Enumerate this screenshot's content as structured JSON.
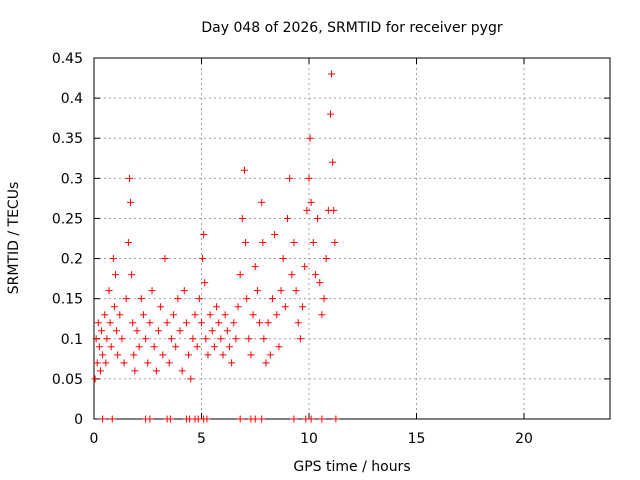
{
  "chart_data": {
    "type": "scatter",
    "title": "Day 048 of 2026, SRMTID for receiver pygr",
    "xlabel": "GPS time / hours",
    "ylabel": "SRMTID / TECUs",
    "xlim": [
      0,
      24
    ],
    "ylim": [
      0,
      0.45
    ],
    "xticks": [
      0,
      5,
      10,
      15,
      20
    ],
    "xtick_labels": [
      "0",
      "5",
      "10",
      "15",
      "20"
    ],
    "yticks": [
      0,
      0.05,
      0.1,
      0.15,
      0.2,
      0.25,
      0.3,
      0.35,
      0.4,
      0.45
    ],
    "ytick_labels": [
      "0",
      "0.05",
      "0.1",
      "0.15",
      "0.2",
      "0.25",
      "0.3",
      "0.35",
      "0.4",
      "0.45"
    ],
    "grid": true,
    "marker": "plus",
    "series": [
      {
        "name": "SRMTID",
        "color": "#ff0000",
        "points": [
          [
            0.05,
            0.05
          ],
          [
            0.1,
            0.1
          ],
          [
            0.15,
            0.07
          ],
          [
            0.2,
            0.12
          ],
          [
            0.25,
            0.09
          ],
          [
            0.3,
            0.06
          ],
          [
            0.35,
            0.11
          ],
          [
            0.4,
            0.08
          ],
          [
            0.5,
            0.13
          ],
          [
            0.55,
            0.07
          ],
          [
            0.6,
            0.1
          ],
          [
            0.7,
            0.16
          ],
          [
            0.75,
            0.12
          ],
          [
            0.8,
            0.09
          ],
          [
            0.9,
            0.2
          ],
          [
            0.95,
            0.14
          ],
          [
            1.0,
            0.18
          ],
          [
            1.05,
            0.11
          ],
          [
            1.1,
            0.08
          ],
          [
            1.2,
            0.13
          ],
          [
            1.3,
            0.1
          ],
          [
            1.4,
            0.07
          ],
          [
            1.5,
            0.15
          ],
          [
            1.6,
            0.22
          ],
          [
            1.65,
            0.3
          ],
          [
            1.7,
            0.27
          ],
          [
            1.75,
            0.18
          ],
          [
            1.8,
            0.12
          ],
          [
            1.85,
            0.08
          ],
          [
            1.9,
            0.06
          ],
          [
            2.0,
            0.11
          ],
          [
            2.1,
            0.09
          ],
          [
            2.2,
            0.15
          ],
          [
            2.3,
            0.13
          ],
          [
            2.4,
            0.1
          ],
          [
            2.5,
            0.07
          ],
          [
            2.6,
            0.12
          ],
          [
            2.7,
            0.16
          ],
          [
            2.8,
            0.09
          ],
          [
            2.9,
            0.06
          ],
          [
            3.0,
            0.11
          ],
          [
            3.1,
            0.14
          ],
          [
            3.2,
            0.08
          ],
          [
            3.3,
            0.2
          ],
          [
            3.4,
            0.12
          ],
          [
            3.5,
            0.07
          ],
          [
            3.6,
            0.1
          ],
          [
            3.7,
            0.13
          ],
          [
            3.8,
            0.09
          ],
          [
            3.9,
            0.15
          ],
          [
            4.0,
            0.11
          ],
          [
            4.1,
            0.06
          ],
          [
            4.2,
            0.16
          ],
          [
            4.3,
            0.12
          ],
          [
            4.4,
            0.08
          ],
          [
            4.5,
            0.05
          ],
          [
            4.6,
            0.1
          ],
          [
            4.7,
            0.13
          ],
          [
            4.8,
            0.09
          ],
          [
            4.9,
            0.15
          ],
          [
            5.0,
            0.12
          ],
          [
            5.05,
            0.2
          ],
          [
            5.1,
            0.23
          ],
          [
            5.15,
            0.17
          ],
          [
            5.2,
            0.1
          ],
          [
            5.3,
            0.08
          ],
          [
            5.4,
            0.13
          ],
          [
            5.5,
            0.11
          ],
          [
            5.6,
            0.09
          ],
          [
            5.7,
            0.14
          ],
          [
            5.8,
            0.12
          ],
          [
            5.9,
            0.1
          ],
          [
            6.0,
            0.08
          ],
          [
            6.1,
            0.13
          ],
          [
            6.2,
            0.11
          ],
          [
            6.3,
            0.09
          ],
          [
            6.4,
            0.07
          ],
          [
            6.5,
            0.12
          ],
          [
            6.6,
            0.1
          ],
          [
            6.7,
            0.14
          ],
          [
            6.8,
            0.18
          ],
          [
            6.9,
            0.25
          ],
          [
            7.0,
            0.31
          ],
          [
            7.05,
            0.22
          ],
          [
            7.1,
            0.15
          ],
          [
            7.2,
            0.1
          ],
          [
            7.3,
            0.08
          ],
          [
            7.4,
            0.13
          ],
          [
            7.5,
            0.19
          ],
          [
            7.6,
            0.16
          ],
          [
            7.7,
            0.12
          ],
          [
            7.8,
            0.27
          ],
          [
            7.85,
            0.22
          ],
          [
            7.9,
            0.1
          ],
          [
            8.0,
            0.07
          ],
          [
            8.1,
            0.12
          ],
          [
            8.2,
            0.08
          ],
          [
            8.3,
            0.15
          ],
          [
            8.4,
            0.23
          ],
          [
            8.5,
            0.13
          ],
          [
            8.6,
            0.09
          ],
          [
            8.7,
            0.16
          ],
          [
            8.8,
            0.2
          ],
          [
            8.9,
            0.14
          ],
          [
            9.0,
            0.25
          ],
          [
            9.1,
            0.3
          ],
          [
            9.2,
            0.18
          ],
          [
            9.3,
            0.22
          ],
          [
            9.4,
            0.16
          ],
          [
            9.5,
            0.12
          ],
          [
            9.6,
            0.1
          ],
          [
            9.7,
            0.14
          ],
          [
            9.8,
            0.19
          ],
          [
            9.9,
            0.26
          ],
          [
            10.0,
            0.3
          ],
          [
            10.05,
            0.35
          ],
          [
            10.1,
            0.27
          ],
          [
            10.2,
            0.22
          ],
          [
            10.3,
            0.18
          ],
          [
            10.4,
            0.25
          ],
          [
            10.5,
            0.17
          ],
          [
            10.6,
            0.13
          ],
          [
            10.7,
            0.15
          ],
          [
            10.8,
            0.2
          ],
          [
            10.9,
            0.26
          ],
          [
            11.0,
            0.38
          ],
          [
            11.05,
            0.43
          ],
          [
            11.1,
            0.32
          ],
          [
            11.15,
            0.26
          ],
          [
            11.2,
            0.22
          ]
        ]
      }
    ],
    "zero_points_x": [
      0.4,
      0.85,
      2.4,
      2.6,
      3.4,
      3.55,
      4.3,
      4.45,
      4.7,
      4.85,
      5.1,
      5.25,
      6.8,
      7.3,
      7.5,
      7.8,
      9.3,
      9.85,
      10.1,
      10.6,
      11.25
    ]
  }
}
